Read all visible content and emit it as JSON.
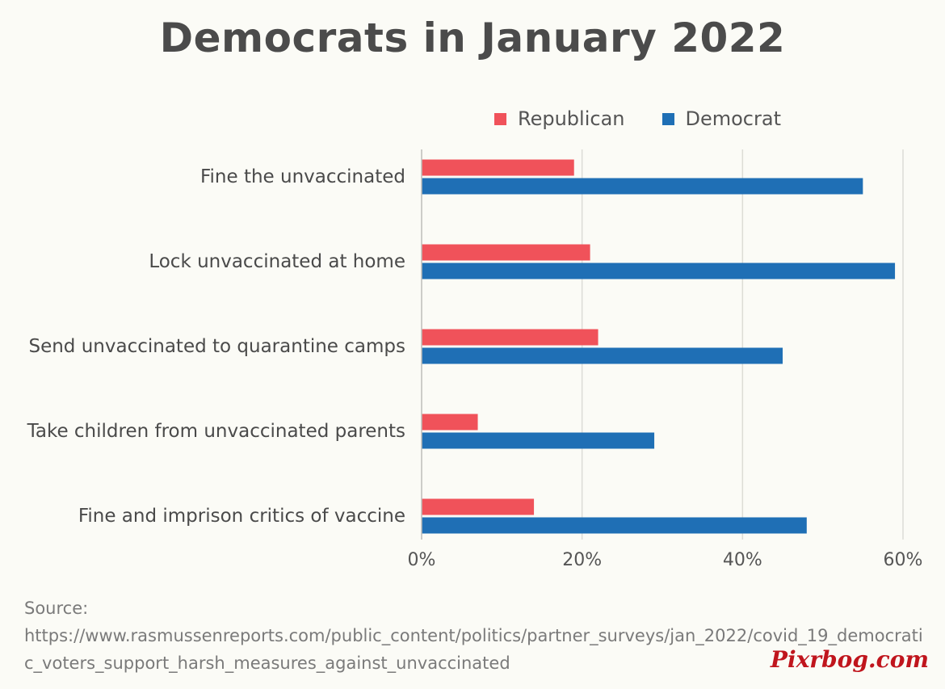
{
  "chart_data": {
    "type": "bar",
    "orientation": "horizontal",
    "title": "Democrats in January 2022",
    "categories": [
      "Fine the unvaccinated",
      "Lock unvaccinated at home",
      "Send unvaccinated to quarantine camps",
      "Take children from unvaccinated parents",
      "Fine and imprison critics of vaccine"
    ],
    "series": [
      {
        "name": "Republican",
        "color": "#f0525a",
        "values": [
          19,
          21,
          22,
          7,
          14
        ]
      },
      {
        "name": "Democrat",
        "color": "#1f6fb5",
        "values": [
          55,
          59,
          45,
          29,
          48
        ]
      }
    ],
    "xlim": [
      0,
      60
    ],
    "xticks": [
      "0%",
      "20%",
      "40%",
      "60%"
    ],
    "grid": true,
    "legend_position": "top-right"
  },
  "source": {
    "label": "Source:",
    "url": "https://www.rasmussenreports.com/public_content/politics/partner_surveys/jan_2022/covid_19_democratic_voters_support_harsh_measures_against_unvaccinated"
  },
  "watermark": "Pixrbog.com"
}
